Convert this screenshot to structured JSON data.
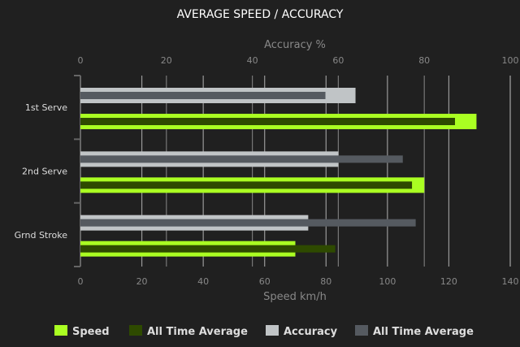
{
  "chart_data": {
    "type": "bar",
    "orientation": "horizontal",
    "title": "AVERAGE SPEED / ACCURACY",
    "categories": [
      "1st Serve",
      "2nd Serve",
      "Grnd Stroke"
    ],
    "top_axis": {
      "label": "Accuracy %",
      "range": [
        0,
        100
      ],
      "ticks": [
        0,
        20,
        40,
        60,
        80,
        100
      ]
    },
    "bottom_axis": {
      "label": "Speed km/h",
      "range": [
        0,
        140
      ],
      "ticks": [
        0,
        20,
        40,
        60,
        80,
        100,
        120,
        140
      ]
    },
    "series": [
      {
        "name": "Speed",
        "axis": "bottom",
        "color": "#aaff22",
        "values": [
          129,
          112,
          70
        ]
      },
      {
        "name": "All Time Average",
        "axis": "bottom",
        "color": "#2e4a00",
        "values": [
          122,
          108,
          83
        ]
      },
      {
        "name": "Accuracy",
        "axis": "top",
        "color": "#c0c4c6",
        "values": [
          64,
          60,
          53
        ]
      },
      {
        "name": "All Time Average",
        "axis": "top",
        "color": "#555a60",
        "values": [
          57,
          75,
          78
        ]
      }
    ],
    "grid": true,
    "legend": "bottom"
  }
}
